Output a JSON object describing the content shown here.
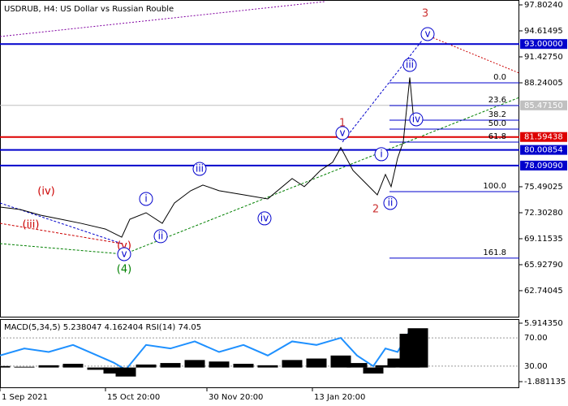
{
  "chart_data": {
    "type": "line",
    "title": "USDRUB, H4:  US Dollar vs Russian Rouble",
    "xlim": [
      0,
      128
    ],
    "xticks": [
      {
        "value": 0,
        "label": "1 Sep 2021"
      },
      {
        "value": 26,
        "label": "15 Oct 20:00"
      },
      {
        "value": 51,
        "label": "30 Nov 20:00"
      },
      {
        "value": 77,
        "label": "13 Jan 20:00"
      }
    ],
    "ylim": [
      59.55,
      98.4
    ],
    "yticks": [
      {
        "value": 97.8024,
        "label": "97.80240"
      },
      {
        "value": 94.61495,
        "label": "94.61495"
      },
      {
        "value": 91.4275,
        "label": "91.42750"
      },
      {
        "value": 88.24005,
        "label": "88.24005"
      },
      {
        "value": 75.49025,
        "label": "75.49025"
      },
      {
        "value": 72.3028,
        "label": "72.30280"
      },
      {
        "value": 69.11535,
        "label": "69.11535"
      },
      {
        "value": 65.9279,
        "label": "65.92790"
      },
      {
        "value": 62.74045,
        "label": "62.74045"
      }
    ],
    "series": [
      {
        "name": "USDRUB",
        "color": "#000000",
        "x": [
          0,
          5,
          10,
          15,
          20,
          26,
          30,
          32,
          36,
          40,
          43,
          47,
          50,
          54,
          60,
          66,
          72,
          75,
          79,
          82,
          84,
          87,
          90,
          93,
          95,
          96.4,
          98,
          99.4,
          101,
          102,
          103
        ],
        "values": [
          73.0,
          72.7,
          72.0,
          71.5,
          71.0,
          70.3,
          69.3,
          71.5,
          72.3,
          71.0,
          73.5,
          75.0,
          75.7,
          75.0,
          74.5,
          74.0,
          76.5,
          75.5,
          77.5,
          78.5,
          80.3,
          77.5,
          76.0,
          74.5,
          77.0,
          75.5,
          79.0,
          81.0,
          88.9,
          83.5,
          84.5
        ]
      }
    ],
    "levels": [
      {
        "value": 93.0,
        "label": "93.00000",
        "color": "#0000cc"
      },
      {
        "value": 85.4715,
        "label": "85.47150",
        "color": "#c0c0c0"
      },
      {
        "value": 81.59438,
        "label": "81.59438",
        "color": "#dd0000"
      },
      {
        "value": 80.00854,
        "label": "80.00854",
        "color": "#0000cc"
      },
      {
        "value": 78.0909,
        "label": "78.09090",
        "color": "#0000cc"
      }
    ],
    "fib": {
      "color": "#0000cc",
      "x": 96,
      "levels": [
        {
          "value": 88.24,
          "label": "0.0"
        },
        {
          "value": 85.45,
          "label": "23.6"
        },
        {
          "value": 83.66,
          "label": "38.2"
        },
        {
          "value": 82.56,
          "label": "50.0"
        },
        {
          "value": 80.97,
          "label": "61.8"
        },
        {
          "value": 74.89,
          "label": "100.0"
        },
        {
          "value": 66.73,
          "label": "161.8"
        }
      ]
    },
    "annotations": [
      {
        "text": "(iv)",
        "x": 11.4,
        "y": 74.89,
        "color": "#cc0000",
        "circled": false
      },
      {
        "text": "(iii)",
        "x": 7.6,
        "y": 70.81,
        "color": "#cc0000",
        "circled": false
      },
      {
        "text": "(v)",
        "x": 30.6,
        "y": 68.22,
        "color": "#cc0000",
        "circled": false
      },
      {
        "text": "v",
        "x": 30.6,
        "y": 67.22,
        "color": "#0000cc",
        "circled": true
      },
      {
        "text": "(4)",
        "x": 30.6,
        "y": 65.33,
        "color": "#008000",
        "circled": false
      },
      {
        "text": "i",
        "x": 36,
        "y": 74.0,
        "color": "#0000cc",
        "circled": true
      },
      {
        "text": "ii",
        "x": 39.6,
        "y": 69.42,
        "color": "#0000cc",
        "circled": true
      },
      {
        "text": "iii",
        "x": 49.2,
        "y": 77.68,
        "color": "#0000cc",
        "circled": true
      },
      {
        "text": "iv",
        "x": 65.2,
        "y": 71.61,
        "color": "#0000cc",
        "circled": true
      },
      {
        "text": "1",
        "x": 84.4,
        "y": 83.26,
        "color": "#cc3333",
        "circled": false
      },
      {
        "text": "v",
        "x": 84.4,
        "y": 82.07,
        "color": "#0000cc",
        "circled": true
      },
      {
        "text": "i",
        "x": 94,
        "y": 79.48,
        "color": "#0000cc",
        "circled": true
      },
      {
        "text": "ii",
        "x": 96.2,
        "y": 73.5,
        "color": "#0000cc",
        "circled": true
      },
      {
        "text": "2",
        "x": 92.6,
        "y": 72.7,
        "color": "#cc3333",
        "circled": false
      },
      {
        "text": "iii",
        "x": 101,
        "y": 90.43,
        "color": "#0000cc",
        "circled": true
      },
      {
        "text": "iv",
        "x": 102.6,
        "y": 83.76,
        "color": "#0000cc",
        "circled": true
      },
      {
        "text": "v",
        "x": 105.4,
        "y": 94.22,
        "color": "#0000cc",
        "circled": true
      },
      {
        "text": "3",
        "x": 104.8,
        "y": 96.71,
        "color": "#cc3333",
        "circled": false
      }
    ],
    "indicator": {
      "label": "MACD(5,34,5) 5.238047 4.162404 RSI(14) 74.05",
      "ylim": [
        0,
        100
      ],
      "yticks": [
        {
          "value": 70,
          "label": "70.00"
        },
        {
          "value": 30,
          "label": "30.00"
        }
      ],
      "y2lim": [
        -2.64,
        6.78
      ],
      "y2ticks": [
        {
          "value": 5.91435,
          "label": "5.914350"
        },
        {
          "value": -1.881135,
          "label": "-1.881135"
        }
      ],
      "series": [
        {
          "name": "RSI(14)",
          "color": "#1e90ff",
          "x": [
            0,
            6,
            12,
            18,
            24,
            28,
            31,
            36,
            42,
            48,
            54,
            60,
            66,
            72,
            78,
            84,
            88,
            92,
            95,
            98,
            101,
            103
          ],
          "values": [
            45,
            55,
            50,
            60,
            45,
            35,
            25,
            60,
            55,
            65,
            50,
            60,
            45,
            65,
            60,
            70,
            45,
            30,
            55,
            50,
            80,
            74.05
          ]
        },
        {
          "name": "MACD(5,34,5)",
          "color": "#000000",
          "axis": "y2",
          "x": [
            0,
            6,
            12,
            18,
            24,
            28,
            31,
            36,
            42,
            48,
            54,
            60,
            66,
            72,
            78,
            84,
            88,
            92,
            95,
            98,
            101,
            103
          ],
          "values": [
            0.2,
            0.1,
            0.3,
            0.5,
            -0.3,
            -0.8,
            -1.2,
            0.4,
            0.6,
            1.0,
            0.8,
            0.5,
            0.3,
            1.0,
            1.2,
            1.6,
            0.6,
            -0.8,
            0.3,
            1.2,
            4.5,
            5.238047
          ]
        }
      ]
    }
  }
}
